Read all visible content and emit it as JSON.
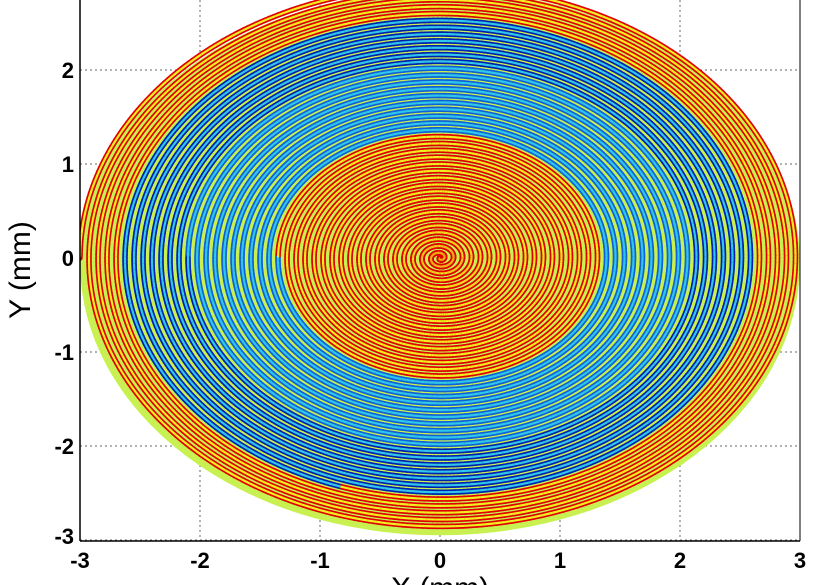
{
  "chart_data": {
    "type": "heatmap",
    "description_kind": "archimedean-spiral-coil",
    "xlabel": "X (mm)",
    "ylabel": "Y (mm)",
    "xlim": [
      -3,
      3
    ],
    "ylim": [
      -3,
      2.75
    ],
    "x_ticks": [
      "-3",
      "-2",
      "-1",
      "0",
      "1",
      "2",
      "3"
    ],
    "y_ticks": [
      "2",
      "1",
      "0",
      "-1",
      "-2",
      "-3"
    ],
    "grid": true,
    "spiral": {
      "outer_radius": 3,
      "turns": 40,
      "colormap": "jet"
    },
    "colors": {
      "red": "#e00000",
      "yellow": "#f0f020",
      "cyan": "#30c8e8",
      "blue": "#1060d8",
      "dark_blue": "#0020b0",
      "outer_fill": "#c8f050"
    }
  }
}
